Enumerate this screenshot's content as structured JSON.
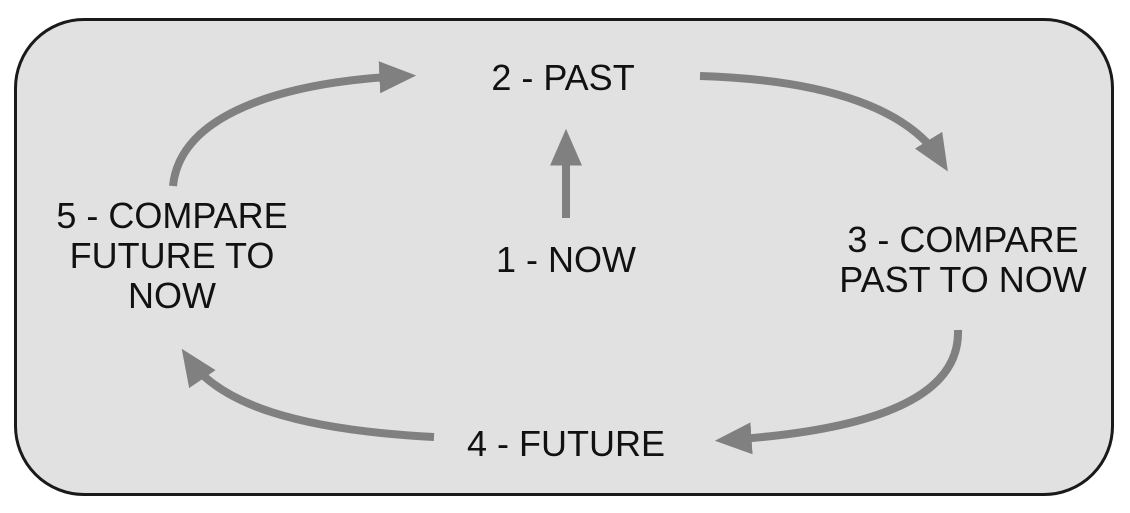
{
  "diagram": {
    "type": "cycle",
    "nodes": [
      {
        "id": "now",
        "lines": [
          "1 - NOW"
        ]
      },
      {
        "id": "past",
        "lines": [
          "2 - PAST"
        ]
      },
      {
        "id": "compare_past",
        "lines": [
          "3 - COMPARE",
          "PAST TO NOW"
        ]
      },
      {
        "id": "future",
        "lines": [
          "4 - FUTURE"
        ]
      },
      {
        "id": "compare_future",
        "lines": [
          "5 - COMPARE",
          "FUTURE TO",
          "NOW"
        ]
      }
    ],
    "edges": [
      {
        "from": "now",
        "to": "past"
      },
      {
        "from": "past",
        "to": "compare_past"
      },
      {
        "from": "compare_past",
        "to": "future"
      },
      {
        "from": "future",
        "to": "compare_future"
      },
      {
        "from": "compare_future",
        "to": "past"
      }
    ],
    "colors": {
      "panel_fill": "#e1e1e1",
      "panel_border": "#1a1a1a",
      "arrow": "#808080",
      "text": "#111111"
    }
  }
}
